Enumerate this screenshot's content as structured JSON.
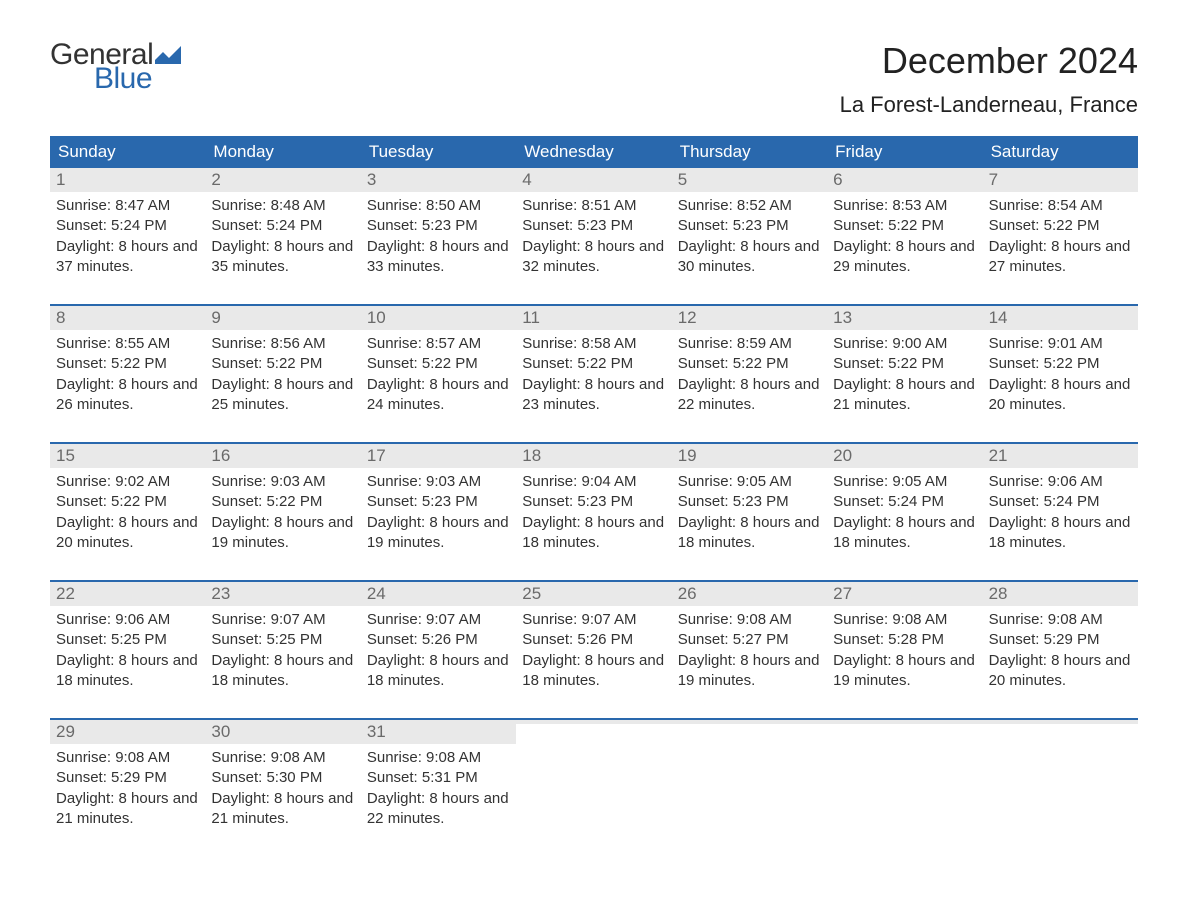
{
  "logo": {
    "text1": "General",
    "text2": "Blue",
    "color1": "#333333",
    "color2": "#2968ad"
  },
  "title": "December 2024",
  "location": "La Forest-Landerneau, France",
  "colors": {
    "header_bg": "#2968ad",
    "header_text": "#ffffff",
    "daynum_bg": "#e9e9e9",
    "daynum_text": "#6a6a6a",
    "body_text": "#333333",
    "week_border": "#2968ad",
    "page_bg": "#ffffff"
  },
  "weekdays": [
    "Sunday",
    "Monday",
    "Tuesday",
    "Wednesday",
    "Thursday",
    "Friday",
    "Saturday"
  ],
  "days": [
    {
      "n": "1",
      "sunrise": "8:47 AM",
      "sunset": "5:24 PM",
      "daylight": "8 hours and 37 minutes."
    },
    {
      "n": "2",
      "sunrise": "8:48 AM",
      "sunset": "5:24 PM",
      "daylight": "8 hours and 35 minutes."
    },
    {
      "n": "3",
      "sunrise": "8:50 AM",
      "sunset": "5:23 PM",
      "daylight": "8 hours and 33 minutes."
    },
    {
      "n": "4",
      "sunrise": "8:51 AM",
      "sunset": "5:23 PM",
      "daylight": "8 hours and 32 minutes."
    },
    {
      "n": "5",
      "sunrise": "8:52 AM",
      "sunset": "5:23 PM",
      "daylight": "8 hours and 30 minutes."
    },
    {
      "n": "6",
      "sunrise": "8:53 AM",
      "sunset": "5:22 PM",
      "daylight": "8 hours and 29 minutes."
    },
    {
      "n": "7",
      "sunrise": "8:54 AM",
      "sunset": "5:22 PM",
      "daylight": "8 hours and 27 minutes."
    },
    {
      "n": "8",
      "sunrise": "8:55 AM",
      "sunset": "5:22 PM",
      "daylight": "8 hours and 26 minutes."
    },
    {
      "n": "9",
      "sunrise": "8:56 AM",
      "sunset": "5:22 PM",
      "daylight": "8 hours and 25 minutes."
    },
    {
      "n": "10",
      "sunrise": "8:57 AM",
      "sunset": "5:22 PM",
      "daylight": "8 hours and 24 minutes."
    },
    {
      "n": "11",
      "sunrise": "8:58 AM",
      "sunset": "5:22 PM",
      "daylight": "8 hours and 23 minutes."
    },
    {
      "n": "12",
      "sunrise": "8:59 AM",
      "sunset": "5:22 PM",
      "daylight": "8 hours and 22 minutes."
    },
    {
      "n": "13",
      "sunrise": "9:00 AM",
      "sunset": "5:22 PM",
      "daylight": "8 hours and 21 minutes."
    },
    {
      "n": "14",
      "sunrise": "9:01 AM",
      "sunset": "5:22 PM",
      "daylight": "8 hours and 20 minutes."
    },
    {
      "n": "15",
      "sunrise": "9:02 AM",
      "sunset": "5:22 PM",
      "daylight": "8 hours and 20 minutes."
    },
    {
      "n": "16",
      "sunrise": "9:03 AM",
      "sunset": "5:22 PM",
      "daylight": "8 hours and 19 minutes."
    },
    {
      "n": "17",
      "sunrise": "9:03 AM",
      "sunset": "5:23 PM",
      "daylight": "8 hours and 19 minutes."
    },
    {
      "n": "18",
      "sunrise": "9:04 AM",
      "sunset": "5:23 PM",
      "daylight": "8 hours and 18 minutes."
    },
    {
      "n": "19",
      "sunrise": "9:05 AM",
      "sunset": "5:23 PM",
      "daylight": "8 hours and 18 minutes."
    },
    {
      "n": "20",
      "sunrise": "9:05 AM",
      "sunset": "5:24 PM",
      "daylight": "8 hours and 18 minutes."
    },
    {
      "n": "21",
      "sunrise": "9:06 AM",
      "sunset": "5:24 PM",
      "daylight": "8 hours and 18 minutes."
    },
    {
      "n": "22",
      "sunrise": "9:06 AM",
      "sunset": "5:25 PM",
      "daylight": "8 hours and 18 minutes."
    },
    {
      "n": "23",
      "sunrise": "9:07 AM",
      "sunset": "5:25 PM",
      "daylight": "8 hours and 18 minutes."
    },
    {
      "n": "24",
      "sunrise": "9:07 AM",
      "sunset": "5:26 PM",
      "daylight": "8 hours and 18 minutes."
    },
    {
      "n": "25",
      "sunrise": "9:07 AM",
      "sunset": "5:26 PM",
      "daylight": "8 hours and 18 minutes."
    },
    {
      "n": "26",
      "sunrise": "9:08 AM",
      "sunset": "5:27 PM",
      "daylight": "8 hours and 19 minutes."
    },
    {
      "n": "27",
      "sunrise": "9:08 AM",
      "sunset": "5:28 PM",
      "daylight": "8 hours and 19 minutes."
    },
    {
      "n": "28",
      "sunrise": "9:08 AM",
      "sunset": "5:29 PM",
      "daylight": "8 hours and 20 minutes."
    },
    {
      "n": "29",
      "sunrise": "9:08 AM",
      "sunset": "5:29 PM",
      "daylight": "8 hours and 21 minutes."
    },
    {
      "n": "30",
      "sunrise": "9:08 AM",
      "sunset": "5:30 PM",
      "daylight": "8 hours and 21 minutes."
    },
    {
      "n": "31",
      "sunrise": "9:08 AM",
      "sunset": "5:31 PM",
      "daylight": "8 hours and 22 minutes."
    }
  ],
  "labels": {
    "sunrise": "Sunrise:",
    "sunset": "Sunset:",
    "daylight": "Daylight:"
  }
}
